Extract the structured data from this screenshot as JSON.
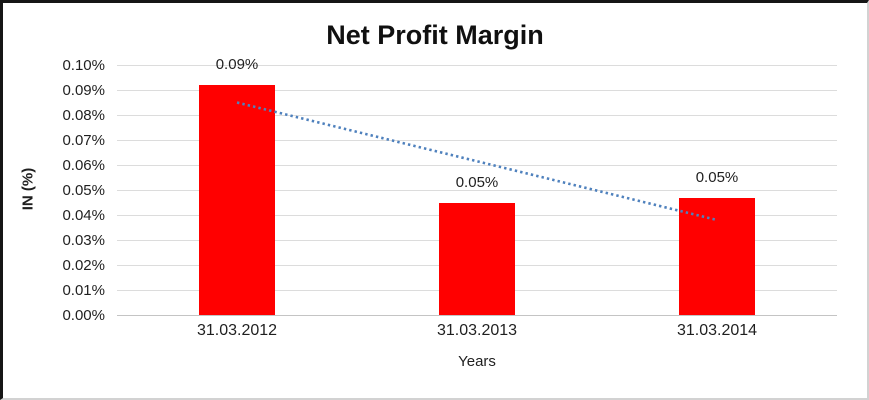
{
  "chart_data": {
    "type": "bar",
    "title": "Net Profit Margin",
    "categories": [
      "31.03.2012",
      "31.03.2013",
      "31.03.2014"
    ],
    "values": [
      0.092,
      0.045,
      0.047
    ],
    "data_labels": [
      "0.09%",
      "0.05%",
      "0.05%"
    ],
    "xlabel": "Years",
    "ylabel": "IN (%)",
    "ylim": [
      0,
      0.1
    ],
    "ytick_step": 0.01,
    "ytick_labels": [
      "0.00%",
      "0.01%",
      "0.02%",
      "0.03%",
      "0.04%",
      "0.05%",
      "0.06%",
      "0.07%",
      "0.08%",
      "0.09%",
      "0.10%"
    ],
    "grid": true,
    "legend": "none",
    "bar_color": "#FF0000",
    "trendline": {
      "style": "dotted",
      "color": "#4F81BD",
      "points": [
        {
          "x_index": 0,
          "y": 0.085
        },
        {
          "x_index": 2,
          "y": 0.038
        }
      ]
    }
  },
  "colors": {
    "bar": "#FF0000",
    "trendline": "#4F81BD",
    "gridline": "#DCDCDC",
    "axis_line": "#C4C4C4",
    "text": "#1F1F1F",
    "border_dark": "#161616",
    "border_light": "#D2D2D2"
  }
}
